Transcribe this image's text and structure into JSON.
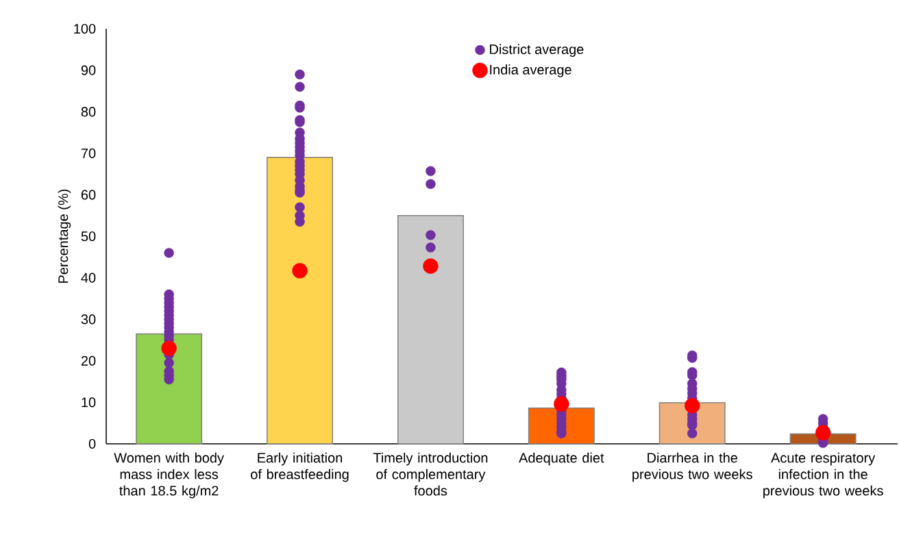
{
  "chart_data": {
    "type": "bar",
    "ylabel": "Percentage (%)",
    "categories": [
      "Women with body mass index less than 18.5 kg/m2",
      "Early initiation of breastfeeding",
      "Timely introduction of complementary foods",
      "Adequate diet",
      "Diarrhea in the previous two weeks",
      "Acute respiratory infection in the previous two weeks"
    ],
    "ylim": [
      0,
      100
    ],
    "yticks": [
      0,
      10,
      20,
      30,
      40,
      50,
      60,
      70,
      80,
      90,
      100
    ],
    "grid": false,
    "legend": "top",
    "marker": "circle",
    "series": [
      {
        "values": [
          26.5,
          69,
          55,
          8.6,
          9.9,
          2.4
        ],
        "colors": [
          "#92d050",
          "#fed44f",
          "#c9c9c9",
          "#ff6600",
          "#f1b07b",
          "#b5571a"
        ]
      },
      {
        "type": "scatter",
        "name": "District average",
        "color": "#7030a0",
        "x": [
          "Women with body mass index less than 18.5 kg/m2",
          "Women with body mass index less than 18.5 kg/m2",
          "Women with body mass index less than 18.5 kg/m2",
          "Women with body mass index less than 18.5 kg/m2",
          "Women with body mass index less than 18.5 kg/m2",
          "Women with body mass index less than 18.5 kg/m2",
          "Women with body mass index less than 18.5 kg/m2",
          "Women with body mass index less than 18.5 kg/m2",
          "Women with body mass index less than 18.5 kg/m2",
          "Women with body mass index less than 18.5 kg/m2",
          "Women with body mass index less than 18.5 kg/m2",
          "Women with body mass index less than 18.5 kg/m2",
          "Women with body mass index less than 18.5 kg/m2",
          "Women with body mass index less than 18.5 kg/m2",
          "Women with body mass index less than 18.5 kg/m2",
          "Women with body mass index less than 18.5 kg/m2",
          "Women with body mass index less than 18.5 kg/m2",
          "Women with body mass index less than 18.5 kg/m2",
          "Women with body mass index less than 18.5 kg/m2",
          "Women with body mass index less than 18.5 kg/m2",
          "Early initiation of breastfeeding",
          "Early initiation of breastfeeding",
          "Early initiation of breastfeeding",
          "Early initiation of breastfeeding",
          "Early initiation of breastfeeding",
          "Early initiation of breastfeeding",
          "Early initiation of breastfeeding",
          "Early initiation of breastfeeding",
          "Early initiation of breastfeeding",
          "Early initiation of breastfeeding",
          "Early initiation of breastfeeding",
          "Early initiation of breastfeeding",
          "Early initiation of breastfeeding",
          "Early initiation of breastfeeding",
          "Early initiation of breastfeeding",
          "Early initiation of breastfeeding",
          "Early initiation of breastfeeding",
          "Early initiation of breastfeeding",
          "Early initiation of breastfeeding",
          "Early initiation of breastfeeding",
          "Early initiation of breastfeeding",
          "Early initiation of breastfeeding",
          "Early initiation of breastfeeding",
          "Timely introduction of complementary foods",
          "Timely introduction of complementary foods",
          "Timely introduction of complementary foods",
          "Timely introduction of complementary foods",
          "Adequate diet",
          "Adequate diet",
          "Adequate diet",
          "Adequate diet",
          "Adequate diet",
          "Adequate diet",
          "Adequate diet",
          "Adequate diet",
          "Adequate diet",
          "Adequate diet",
          "Adequate diet",
          "Adequate diet",
          "Adequate diet",
          "Adequate diet",
          "Adequate diet",
          "Adequate diet",
          "Adequate diet",
          "Diarrhea in the previous two weeks",
          "Diarrhea in the previous two weeks",
          "Diarrhea in the previous two weeks",
          "Diarrhea in the previous two weeks",
          "Diarrhea in the previous two weeks",
          "Diarrhea in the previous two weeks",
          "Diarrhea in the previous two weeks",
          "Diarrhea in the previous two weeks",
          "Diarrhea in the previous two weeks",
          "Diarrhea in the previous two weeks",
          "Diarrhea in the previous two weeks",
          "Diarrhea in the previous two weeks",
          "Diarrhea in the previous two weeks",
          "Diarrhea in the previous two weeks",
          "Diarrhea in the previous two weeks",
          "Diarrhea in the previous two weeks",
          "Acute respiratory infection in the previous two weeks",
          "Acute respiratory infection in the previous two weeks",
          "Acute respiratory infection in the previous two weeks",
          "Acute respiratory infection in the previous two weeks",
          "Acute respiratory infection in the previous two weeks",
          "Acute respiratory infection in the previous two weeks",
          "Acute respiratory infection in the previous two weeks"
        ],
        "values": [
          46,
          36,
          35,
          34,
          33,
          32,
          31,
          30,
          29,
          28,
          27,
          26,
          25,
          null,
          null,
          21.5,
          19.5,
          17.5,
          16.5,
          15.5,
          89,
          86,
          81.5,
          81,
          78,
          77.5,
          75,
          73.5,
          72.5,
          71.5,
          70.5,
          69.5,
          68,
          67,
          66,
          65,
          63.5,
          62,
          61,
          60.5,
          57,
          55,
          53.5,
          65.7,
          62.6,
          50.3,
          47.3,
          17.2,
          16.5,
          16,
          15.5,
          14.5,
          13,
          12,
          11,
          null,
          null,
          8,
          7,
          6,
          5,
          4,
          3,
          2.5,
          21.3,
          20.7,
          17.3,
          16.5,
          14.5,
          13.3,
          12.2,
          11,
          null,
          null,
          null,
          7,
          6,
          5,
          4.5,
          2.5,
          6,
          5,
          4,
          null,
          null,
          1,
          0.2
        ]
      },
      {
        "type": "scatter",
        "name": "India average",
        "color": "#ff0000",
        "values": [
          23,
          41.7,
          42.8,
          9.6,
          9.2,
          2.7
        ]
      }
    ]
  }
}
